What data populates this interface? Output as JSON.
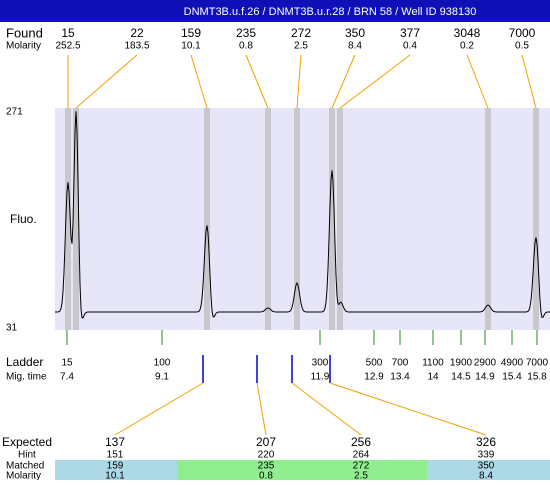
{
  "title": "DNMT3B.u.f.26 / DNMT3B.u.r.28 / BRN 58 / Well ID 938130",
  "found": {
    "label": "Found",
    "molarity_label": "Molarity",
    "peaks": [
      {
        "size": 15,
        "molarity": 252.5
      },
      {
        "size": 22,
        "molarity": 183.5
      },
      {
        "size": 159,
        "molarity": 10.1
      },
      {
        "size": 235,
        "molarity": 0.8
      },
      {
        "size": 272,
        "molarity": 2.5
      },
      {
        "size": 350,
        "molarity": 8.4
      },
      {
        "size": 377,
        "molarity": 0.4
      },
      {
        "size": 3048,
        "molarity": 0.2
      },
      {
        "size": 7000,
        "molarity": 0.5
      }
    ]
  },
  "plot": {
    "y_label": "Fluo.",
    "y_max": 271,
    "y_min": 31
  },
  "ladder": {
    "label": "Ladder",
    "time_label": "Mig. time",
    "sizes": [
      15,
      100,
      300,
      500,
      700,
      1100,
      1900,
      2900,
      4900,
      7000
    ],
    "times": [
      7.4,
      9.1,
      11.9,
      12.9,
      13.4,
      14,
      14.5,
      14.9,
      15.4,
      15.8
    ]
  },
  "expected": {
    "label": "Expected",
    "hint_label": "Hint",
    "matched_label": "Matched",
    "molarity_label": "Molarity",
    "items": [
      {
        "expected": 137,
        "hint": 151,
        "matched": 159,
        "molarity": 10.1
      },
      {
        "expected": 207,
        "hint": 220,
        "matched": 235,
        "molarity": 0.8
      },
      {
        "expected": 256,
        "hint": 264,
        "matched": 272,
        "molarity": 2.5
      },
      {
        "expected": 326,
        "hint": 339,
        "matched": 350,
        "molarity": 8.4
      }
    ]
  }
}
